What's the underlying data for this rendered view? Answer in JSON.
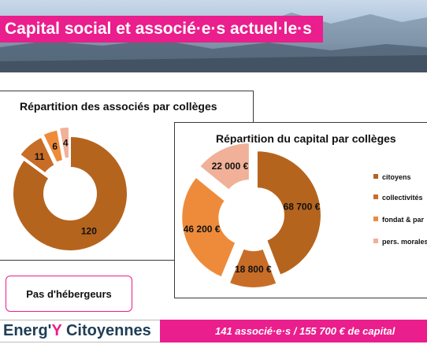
{
  "slide": {
    "title": "Capital social et associé·e·s actuel·le·s",
    "no_host_label": "Pas d'hébergeurs"
  },
  "footer": {
    "brand_part1": "Energ'",
    "brand_part2": "Y",
    "brand_part3": " Citoyennes",
    "summary": "141 associé·e·s / 155 700 € de capital"
  },
  "colors": {
    "brand_pink": "#ea1e8c",
    "citoyens": "#b5641e",
    "collectivites": "#c86d27",
    "fondat": "#ee8b3a",
    "pers_morales": "#f0b198"
  },
  "chart_data": [
    {
      "type": "pie",
      "title": "Répartition des associés par collèges",
      "labels": [
        "citoyens",
        "collectivités",
        "fondat & par",
        "pers. morales"
      ],
      "values": [
        120,
        11,
        6,
        4
      ],
      "value_labels": [
        "120",
        "11",
        "6",
        "4"
      ],
      "legend": "none"
    },
    {
      "type": "pie",
      "title": "Répartition du capital par collèges",
      "labels": [
        "citoyens",
        "collectivités",
        "fondat & par",
        "pers. morales"
      ],
      "values": [
        68700,
        18800,
        46200,
        22000
      ],
      "value_labels": [
        "68 700 €",
        "18 800 €",
        "46 200 €",
        "22 000 €"
      ],
      "legend": "right"
    }
  ]
}
